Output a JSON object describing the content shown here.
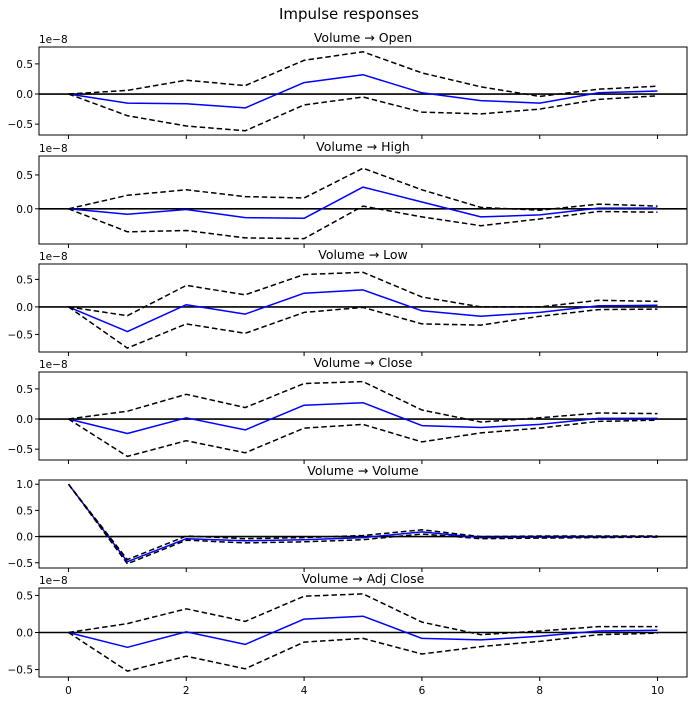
{
  "figure_title": "Impulse responses",
  "chart_data": [
    {
      "type": "line",
      "title": "Volume → Open",
      "offset_text": "1e−8",
      "scale": 1e-08,
      "x": [
        0,
        1,
        2,
        3,
        4,
        5,
        6,
        7,
        8,
        9,
        10
      ],
      "ylim": [
        -0.68,
        0.78
      ],
      "yticks": [
        -0.5,
        0.0,
        0.5
      ],
      "ytick_labels": [
        "−0.5",
        "0.0",
        "0.5"
      ],
      "series": [
        {
          "role": "response",
          "values": [
            0.0,
            -0.15,
            -0.16,
            -0.23,
            0.19,
            0.32,
            0.02,
            -0.11,
            -0.15,
            0.02,
            0.05
          ]
        },
        {
          "role": "upper",
          "values": [
            0.0,
            0.06,
            0.23,
            0.14,
            0.56,
            0.7,
            0.35,
            0.12,
            -0.04,
            0.08,
            0.13
          ]
        },
        {
          "role": "lower",
          "values": [
            0.0,
            -0.36,
            -0.53,
            -0.61,
            -0.18,
            -0.05,
            -0.3,
            -0.33,
            -0.25,
            -0.09,
            -0.03
          ]
        }
      ]
    },
    {
      "type": "line",
      "title": "Volume → High",
      "offset_text": "1e−8",
      "scale": 1e-08,
      "x": [
        0,
        1,
        2,
        3,
        4,
        5,
        6,
        7,
        8,
        9,
        10
      ],
      "ylim": [
        -0.52,
        0.78
      ],
      "yticks": [
        0.0,
        0.5
      ],
      "ytick_labels": [
        "0.0",
        "0.5"
      ],
      "series": [
        {
          "role": "response",
          "values": [
            0.0,
            -0.08,
            -0.01,
            -0.13,
            -0.14,
            0.32,
            0.1,
            -0.12,
            -0.09,
            0.01,
            0.01
          ]
        },
        {
          "role": "upper",
          "values": [
            0.0,
            0.2,
            0.28,
            0.18,
            0.16,
            0.6,
            0.28,
            0.02,
            -0.02,
            0.07,
            0.04
          ]
        },
        {
          "role": "lower",
          "values": [
            0.0,
            -0.34,
            -0.32,
            -0.43,
            -0.44,
            0.04,
            -0.12,
            -0.25,
            -0.15,
            -0.04,
            -0.05
          ]
        }
      ]
    },
    {
      "type": "line",
      "title": "Volume → Low",
      "offset_text": "1e−8",
      "scale": 1e-08,
      "x": [
        0,
        1,
        2,
        3,
        4,
        5,
        6,
        7,
        8,
        9,
        10
      ],
      "ylim": [
        -0.82,
        0.78
      ],
      "yticks": [
        -0.5,
        0.0,
        0.5
      ],
      "ytick_labels": [
        "−0.5",
        "0.0",
        "0.5"
      ],
      "series": [
        {
          "role": "response",
          "values": [
            0.0,
            -0.45,
            0.04,
            -0.13,
            0.25,
            0.31,
            -0.07,
            -0.17,
            -0.1,
            0.02,
            0.03
          ]
        },
        {
          "role": "upper",
          "values": [
            0.0,
            -0.16,
            0.39,
            0.22,
            0.59,
            0.63,
            0.18,
            0.0,
            0.0,
            0.12,
            0.1
          ]
        },
        {
          "role": "lower",
          "values": [
            0.0,
            -0.75,
            -0.31,
            -0.48,
            -0.1,
            -0.01,
            -0.31,
            -0.33,
            -0.17,
            -0.05,
            -0.04
          ]
        }
      ]
    },
    {
      "type": "line",
      "title": "Volume → Close",
      "offset_text": "1e−8",
      "scale": 1e-08,
      "x": [
        0,
        1,
        2,
        3,
        4,
        5,
        6,
        7,
        8,
        9,
        10
      ],
      "ylim": [
        -0.68,
        0.78
      ],
      "yticks": [
        -0.5,
        0.0,
        0.5
      ],
      "ytick_labels": [
        "−0.5",
        "0.0",
        "0.5"
      ],
      "series": [
        {
          "role": "response",
          "values": [
            0.0,
            -0.24,
            0.02,
            -0.18,
            0.23,
            0.27,
            -0.11,
            -0.14,
            -0.09,
            0.01,
            0.01
          ]
        },
        {
          "role": "upper",
          "values": [
            0.0,
            0.13,
            0.41,
            0.19,
            0.59,
            0.62,
            0.15,
            -0.05,
            0.02,
            0.1,
            0.09
          ]
        },
        {
          "role": "lower",
          "values": [
            0.0,
            -0.62,
            -0.36,
            -0.56,
            -0.15,
            -0.09,
            -0.38,
            -0.23,
            -0.15,
            -0.04,
            -0.02
          ]
        }
      ]
    },
    {
      "type": "line",
      "title": "Volume → Volume",
      "offset_text": "",
      "scale": 1,
      "x": [
        0,
        1,
        2,
        3,
        4,
        5,
        6,
        7,
        8,
        9,
        10
      ],
      "ylim": [
        -0.6,
        1.08
      ],
      "yticks": [
        -0.5,
        0.0,
        0.5,
        1.0
      ],
      "ytick_labels": [
        "−0.5",
        "0.0",
        "0.5",
        "1.0"
      ],
      "series": [
        {
          "role": "response",
          "values": [
            1.0,
            -0.48,
            -0.04,
            -0.08,
            -0.06,
            -0.02,
            0.09,
            -0.02,
            -0.01,
            -0.01,
            0.0
          ]
        },
        {
          "role": "upper",
          "values": [
            1.0,
            -0.44,
            0.01,
            -0.04,
            -0.02,
            0.02,
            0.13,
            0.0,
            0.01,
            0.01,
            0.01
          ]
        },
        {
          "role": "lower",
          "values": [
            1.0,
            -0.52,
            -0.07,
            -0.12,
            -0.1,
            -0.06,
            0.05,
            -0.04,
            -0.03,
            -0.02,
            -0.01
          ]
        }
      ]
    },
    {
      "type": "line",
      "title": "Volume → Adj Close",
      "offset_text": "1e−8",
      "scale": 1e-08,
      "x": [
        0,
        1,
        2,
        3,
        4,
        5,
        6,
        7,
        8,
        9,
        10
      ],
      "xticks": [
        0,
        2,
        4,
        6,
        8,
        10
      ],
      "xtick_labels": [
        "0",
        "2",
        "4",
        "6",
        "8",
        "10"
      ],
      "ylim": [
        -0.6,
        0.6
      ],
      "yticks": [
        -0.5,
        0.0,
        0.5
      ],
      "ytick_labels": [
        "−0.5",
        "0.0",
        "0.5"
      ],
      "series": [
        {
          "role": "response",
          "values": [
            0.0,
            -0.2,
            0.01,
            -0.16,
            0.18,
            0.22,
            -0.08,
            -0.1,
            -0.05,
            0.02,
            0.03
          ]
        },
        {
          "role": "upper",
          "values": [
            0.0,
            0.12,
            0.32,
            0.15,
            0.49,
            0.52,
            0.14,
            -0.03,
            0.02,
            0.08,
            0.08
          ]
        },
        {
          "role": "lower",
          "values": [
            0.0,
            -0.52,
            -0.32,
            -0.49,
            -0.13,
            -0.08,
            -0.29,
            -0.19,
            -0.12,
            -0.03,
            -0.01
          ]
        }
      ]
    }
  ],
  "colors": {
    "response": "#0000ff",
    "bands": "#000000",
    "zero_line": "#000000"
  }
}
